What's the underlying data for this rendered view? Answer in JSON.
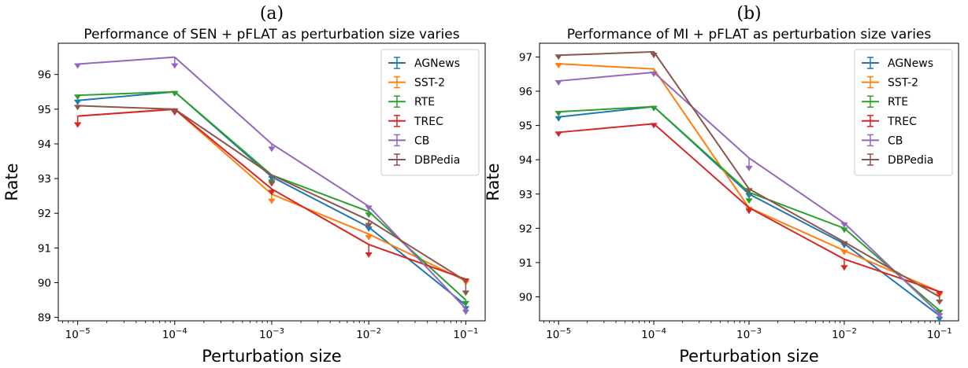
{
  "chart_data": [
    {
      "type": "line",
      "panel_label": "(a)",
      "title": "Performance of SEN + pFLAT as perturbation size varies",
      "xlabel": "Perturbation size",
      "ylabel": "Rate",
      "x_scale": "log",
      "x": [
        "10^-5",
        "10^-4",
        "10^-3",
        "10^-2",
        "10^-1"
      ],
      "x_exponents": [
        -5,
        -4,
        -3,
        -2,
        -1
      ],
      "ylim": [
        88.9,
        96.9
      ],
      "yticks": [
        89,
        90,
        91,
        92,
        93,
        94,
        95,
        96
      ],
      "legend_position": "top-right",
      "series": [
        {
          "name": "AGNews",
          "color": "#1f77b4",
          "values": [
            95.25,
            95.5,
            93.05,
            91.6,
            89.35
          ],
          "err_low": [
            0.0,
            0.0,
            0.0,
            0.0,
            0.05
          ]
        },
        {
          "name": "SST-2",
          "color": "#ff7f0e",
          "values": [
            94.8,
            95.0,
            92.55,
            91.4,
            90.05
          ],
          "err_low": [
            0.2,
            0.0,
            0.15,
            0.05,
            0.0
          ]
        },
        {
          "name": "RTE",
          "color": "#2ca02c",
          "values": [
            95.4,
            95.5,
            93.1,
            92.05,
            89.5
          ],
          "err_low": [
            0.0,
            0.0,
            0.15,
            0.05,
            0.05
          ]
        },
        {
          "name": "TREC",
          "color": "#d62728",
          "values": [
            94.8,
            95.0,
            92.7,
            91.1,
            90.1
          ],
          "err_low": [
            0.2,
            0.05,
            0.05,
            0.25,
            0.0
          ]
        },
        {
          "name": "CB",
          "color": "#9467bd",
          "values": [
            96.3,
            96.5,
            94.0,
            92.2,
            89.25
          ],
          "err_low": [
            0.0,
            0.2,
            0.1,
            0.0,
            0.05
          ]
        },
        {
          "name": "DBPedia",
          "color": "#8c564b",
          "values": [
            95.1,
            95.0,
            93.1,
            91.8,
            90.05
          ],
          "err_low": [
            0.0,
            0.0,
            0.2,
            0.1,
            0.3
          ]
        }
      ]
    },
    {
      "type": "line",
      "panel_label": "(b)",
      "title": "Performance of MI + pFLAT as perturbation size varies",
      "xlabel": "Perturbation size",
      "ylabel": "Rate",
      "x_scale": "log",
      "x": [
        "10^-5",
        "10^-4",
        "10^-3",
        "10^-2",
        "10^-1"
      ],
      "x_exponents": [
        -5,
        -4,
        -3,
        -2,
        -1
      ],
      "ylim": [
        89.3,
        97.4
      ],
      "yticks": [
        90,
        91,
        92,
        93,
        94,
        95,
        96,
        97
      ],
      "legend_position": "top-right",
      "series": [
        {
          "name": "AGNews",
          "color": "#1f77b4",
          "values": [
            95.25,
            95.55,
            93.0,
            91.55,
            89.45
          ],
          "err_low": [
            0.0,
            0.0,
            0.0,
            0.0,
            0.05
          ]
        },
        {
          "name": "SST-2",
          "color": "#ff7f0e",
          "values": [
            96.8,
            96.65,
            92.6,
            91.35,
            90.15
          ],
          "err_low": [
            0.0,
            0.1,
            0.0,
            0.0,
            0.05
          ]
        },
        {
          "name": "RTE",
          "color": "#2ca02c",
          "values": [
            95.4,
            95.55,
            93.05,
            92.0,
            89.6
          ],
          "err_low": [
            0.0,
            0.0,
            0.2,
            0.0,
            0.0
          ]
        },
        {
          "name": "TREC",
          "color": "#d62728",
          "values": [
            94.8,
            95.05,
            92.6,
            91.1,
            90.15
          ],
          "err_low": [
            0.0,
            0.0,
            0.05,
            0.2,
            0.0
          ]
        },
        {
          "name": "CB",
          "color": "#9467bd",
          "values": [
            96.3,
            96.55,
            94.05,
            92.15,
            89.5
          ],
          "err_low": [
            0.0,
            0.0,
            0.25,
            0.0,
            0.0
          ]
        },
        {
          "name": "DBPedia",
          "color": "#8c564b",
          "values": [
            97.05,
            97.15,
            93.15,
            91.6,
            90.0
          ],
          "err_low": [
            0.0,
            0.05,
            0.0,
            0.0,
            0.1
          ]
        }
      ]
    }
  ]
}
